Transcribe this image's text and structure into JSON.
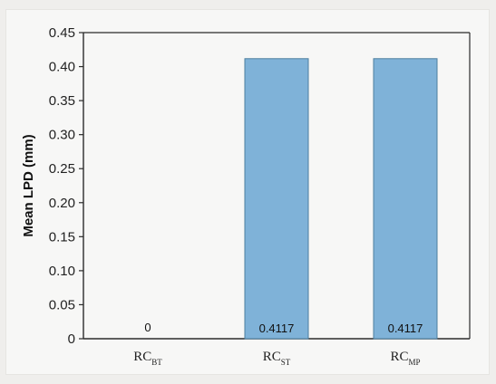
{
  "chart_data": {
    "type": "bar",
    "ylabel": "Mean LPD (mm)",
    "xlabel": "",
    "ylim": [
      0,
      0.45
    ],
    "yticks": [
      "0",
      "0.05",
      "0.10",
      "0.15",
      "0.20",
      "0.25",
      "0.30",
      "0.35",
      "0.40",
      "0.45"
    ],
    "categories": [
      {
        "base": "RC",
        "sub": "BT"
      },
      {
        "base": "RC",
        "sub": "ST"
      },
      {
        "base": "RC",
        "sub": "MP"
      }
    ],
    "values": [
      0,
      0.4117,
      0.4117
    ],
    "data_labels": [
      "0",
      "0.4117",
      "0.4117"
    ],
    "colors": {
      "bar": "#7fb2d8",
      "bar_edge": "#4d7f9f",
      "axis": "#2b2b2b"
    },
    "grid": false,
    "legend": "none"
  }
}
